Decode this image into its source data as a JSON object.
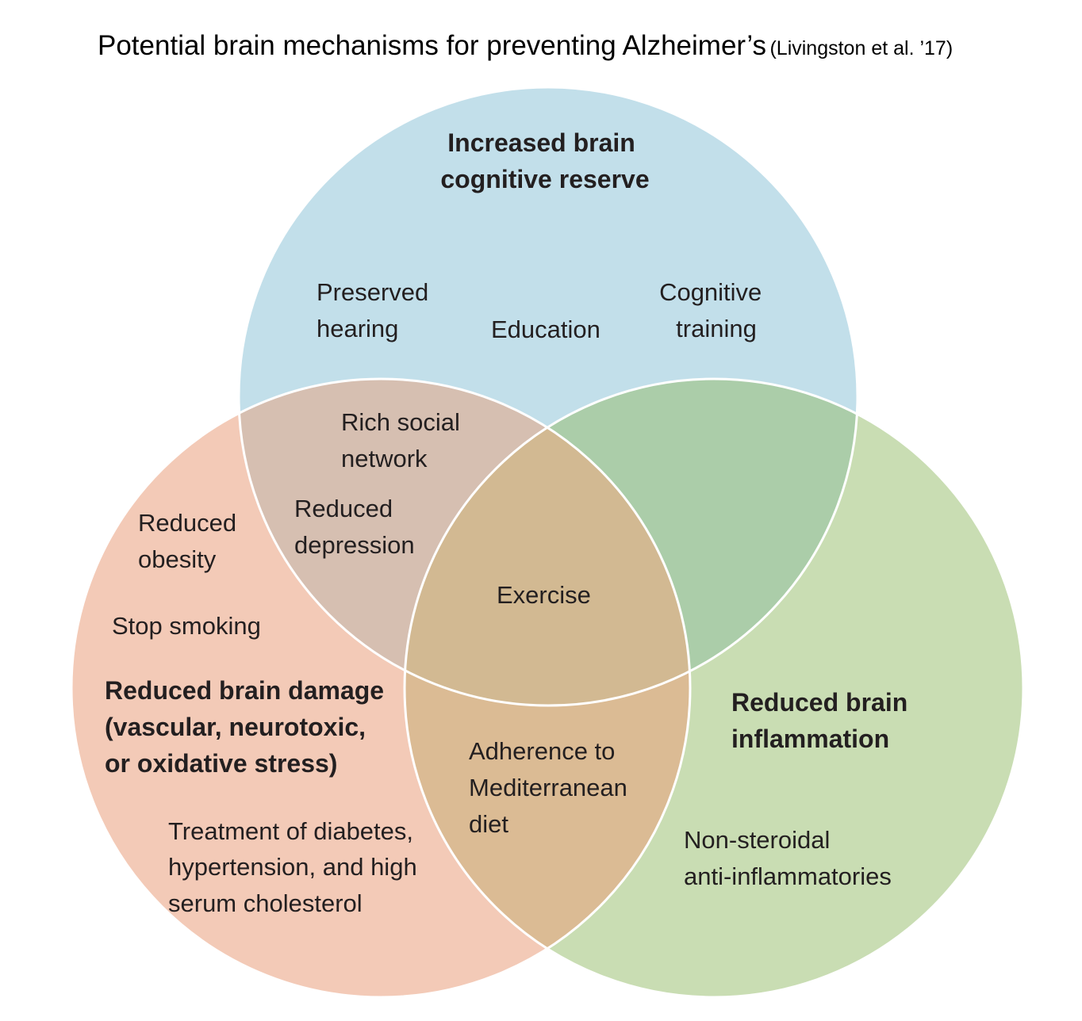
{
  "title": {
    "main": "Potential brain mechanisms for preventing Alzheimer’s",
    "citation": "(Livingston et al. ’17)"
  },
  "colors": {
    "top_circle": "#c2dfea",
    "left_circle": "#f3cab7",
    "right_circle": "#c9ddb3",
    "top_left_overlap": "#d6bfb1",
    "top_right_overlap": "#abcda9",
    "left_right_overlap": "#dbbb94",
    "center_overlap": "#d2b992",
    "outline": "#ffffff"
  },
  "circles": {
    "top": {
      "heading": [
        "Increased brain",
        "cognitive reserve"
      ],
      "items": {
        "preserved_hearing": [
          "Preserved",
          "hearing"
        ],
        "education": [
          "Education"
        ],
        "cognitive_training": [
          "Cognitive",
          "training"
        ]
      }
    },
    "left": {
      "heading": [
        "Reduced brain damage",
        "(vascular, neurotoxic,",
        "or oxidative stress)"
      ],
      "items": {
        "reduced_obesity": [
          "Reduced",
          "obesity"
        ],
        "stop_smoking": [
          "Stop smoking"
        ],
        "treatment": [
          "Treatment of diabetes,",
          "hypertension, and high",
          "serum cholesterol"
        ]
      }
    },
    "right": {
      "heading": [
        "Reduced brain",
        "inflammation"
      ],
      "items": {
        "nsaids": [
          "Non-steroidal",
          "anti-inflammatories"
        ]
      }
    }
  },
  "overlaps": {
    "top_left": {
      "rich_social_network": [
        "Rich social",
        "network"
      ],
      "reduced_depression": [
        "Reduced",
        "depression"
      ]
    },
    "left_right": {
      "mediterranean_diet": [
        "Adherence to",
        "Mediterranean",
        "diet"
      ]
    },
    "center": {
      "exercise": [
        "Exercise"
      ]
    }
  }
}
